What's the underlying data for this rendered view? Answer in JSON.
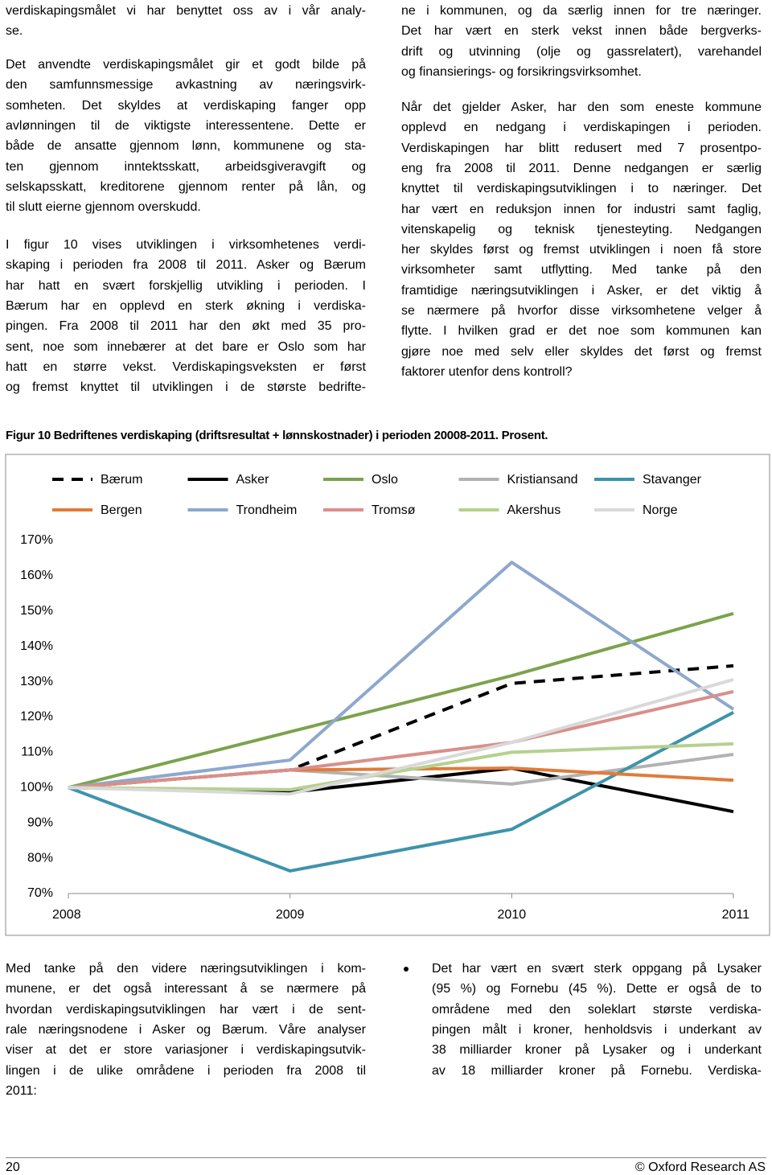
{
  "top_left": [
    [
      "verdiskapingsmålet vi har benyttet oss av i vår analy-",
      "se."
    ],
    [
      "Det anvendte verdiskapingsmålet gir et godt bilde på",
      "den samfunnsmessige avkastning av næringsvirk-",
      "somheten. Det skyldes at verdiskaping fanger opp",
      "avlønningen til de viktigste interessentene. Dette er",
      "både de ansatte gjennom lønn, kommunene og sta-",
      "ten gjennom inntektsskatt, arbeidsgiveravgift og",
      "selskapsskatt, kreditorene gjennom renter på lån, og",
      "til slutt eierne gjennom overskudd."
    ],
    [
      "I figur 10 vises utviklingen i virksomhetenes verdi-",
      "skaping i perioden fra 2008 til 2011. Asker og Bærum",
      "har hatt en svært forskjellig utvikling i perioden. I",
      "Bærum har en opplevd en sterk økning i verdiska-",
      "pingen. Fra 2008 til 2011 har den økt med 35 pro-",
      "sent, noe som innebærer at det bare er Oslo som har",
      "hatt en større vekst. Verdiskapingsveksten er først",
      "og fremst knyttet til utviklingen i de største bedrifte-"
    ]
  ],
  "top_right": [
    [
      "ne i kommunen, og da særlig innen for tre næringer.",
      "Det har vært en sterk vekst innen både bergverks-",
      "drift og utvinning (olje og gassrelatert), varehandel",
      "og finansierings- og forsikringsvirksomhet."
    ],
    [
      "Når det gjelder Asker, har den som eneste kommune",
      "opplevd en nedgang i verdiskapingen i perioden.",
      "Verdiskapingen har blitt redusert med 7 prosentpo-",
      "eng fra 2008 til 2011. Denne nedgangen er særlig",
      "knyttet til verdiskapingsutviklingen i to næringer. Det",
      "har vært en reduksjon innen for industri samt faglig,",
      "vitenskapelig og teknisk tjenesteyting. Nedgangen",
      "her skyldes først og fremst utviklingen i noen få store",
      "virksomheter samt utflytting. Med tanke på den",
      "framtidige næringsutviklingen i Asker, er det viktig å",
      "se nærmere på hvorfor disse virksomhetene velger å",
      "flytte. I hvilken grad er det noe som kommunen kan",
      "gjøre noe med selv eller skyldes det først og fremst",
      "faktorer utenfor dens kontroll?"
    ]
  ],
  "figure_caption": "Figur 10 Bedriftenes verdiskaping (driftsresultat + lønnskostnader) i perioden 20008-2011. Prosent.",
  "chart_data": {
    "type": "line",
    "categories": [
      "2008",
      "2009",
      "2010",
      "2011"
    ],
    "ylim": [
      70,
      170
    ],
    "yticks": [
      {
        "value": 70,
        "label": "70%"
      },
      {
        "value": 80,
        "label": "80%"
      },
      {
        "value": 90,
        "label": "90%"
      },
      {
        "value": 100,
        "label": "100%"
      },
      {
        "value": 110,
        "label": "110%"
      },
      {
        "value": 120,
        "label": "120%"
      },
      {
        "value": 130,
        "label": "130%"
      },
      {
        "value": 140,
        "label": "140%"
      },
      {
        "value": 150,
        "label": "150%"
      },
      {
        "value": 160,
        "label": "160%"
      },
      {
        "value": 170,
        "label": "170%"
      }
    ],
    "grid": false,
    "legend": "top",
    "series": [
      {
        "name": "Bærum",
        "color": "#000000",
        "dashed": true,
        "values": [
          100,
          105,
          129.5,
          134.5
        ]
      },
      {
        "name": "Asker",
        "color": "#000000",
        "values": [
          100,
          98.7,
          105.5,
          93.2
        ]
      },
      {
        "name": "Oslo",
        "color": "#7ca34c",
        "values": [
          100,
          115.8,
          131.7,
          149.3
        ]
      },
      {
        "name": "Kristiansand",
        "color": "#b2b2b2",
        "values": [
          100,
          105,
          101,
          109.4
        ]
      },
      {
        "name": "Stavanger",
        "color": "#3e93ab",
        "values": [
          100,
          76.4,
          88.2,
          121.3
        ]
      },
      {
        "name": "Bergen",
        "color": "#e07b39",
        "values": [
          100,
          105,
          105.5,
          102.1
        ]
      },
      {
        "name": "Trondheim",
        "color": "#8da8cd",
        "values": [
          100,
          107.8,
          163.8,
          122.2
        ]
      },
      {
        "name": "Tromsø",
        "color": "#d98f8b",
        "values": [
          100,
          105,
          112.8,
          127.2
        ]
      },
      {
        "name": "Akershus",
        "color": "#b5d18e",
        "values": [
          100,
          99.4,
          110,
          112.4
        ]
      },
      {
        "name": "Norge",
        "color": "#d9d9d9",
        "values": [
          100,
          98.2,
          112.8,
          130.6
        ]
      }
    ]
  },
  "bottom_left": [
    [
      "Med tanke på den videre næringsutviklingen i kom-",
      "munene, er det også interessant å se nærmere på",
      "hvordan verdiskapingsutviklingen har vært i de sent-",
      "rale næringsnodene i Asker og Bærum. Våre analyser",
      "viser at det er store variasjoner i verdiskapingsutvik-",
      "lingen i de ulike områdene i perioden fra 2008 til",
      "2011:"
    ]
  ],
  "bottom_right": [
    [
      "Det har vært en svært sterk oppgang på Lysaker",
      "(95 %) og Fornebu (45 %). Dette er også de to",
      "områdene med den soleklart største verdiska-",
      "pingen målt i kroner, henholdsvis i underkant av",
      "38 milliarder kroner på Lysaker og i underkant",
      "av 18 milliarder kroner på Fornebu. Verdiska-"
    ]
  ],
  "footer": {
    "page_number": "20",
    "copyright": "© Oxford Research AS"
  }
}
